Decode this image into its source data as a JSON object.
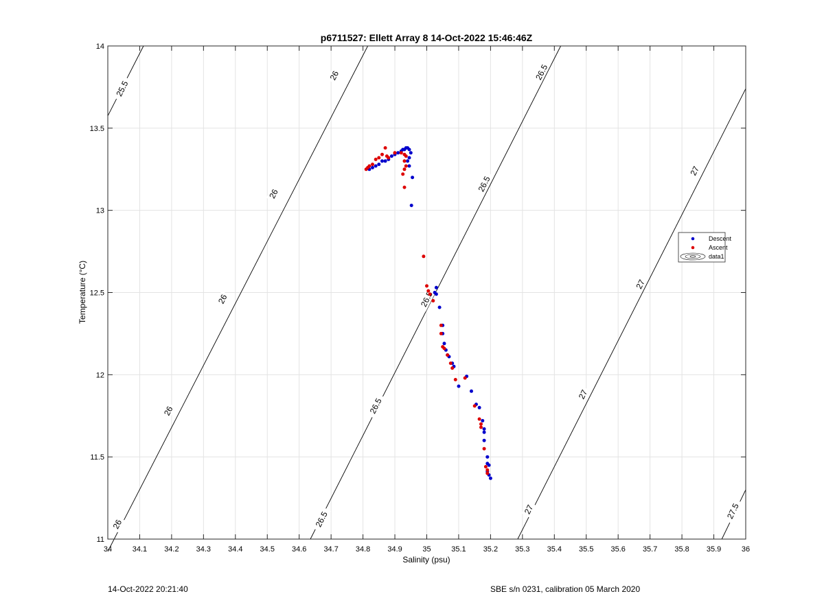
{
  "chart_data": {
    "type": "scatter",
    "title": "p6711527: Ellett Array 8 14-Oct-2022 15:46:46Z",
    "xlabel": "Salinity (psu)",
    "ylabel": "Temperature (°C)",
    "xlim": [
      34,
      36
    ],
    "ylim": [
      11,
      14
    ],
    "grid": true,
    "x_ticks": [
      "34",
      "34.1",
      "34.2",
      "34.3",
      "34.4",
      "34.5",
      "34.6",
      "34.7",
      "34.8",
      "34.9",
      "35",
      "35.1",
      "35.2",
      "35.3",
      "35.4",
      "35.5",
      "35.6",
      "35.7",
      "35.8",
      "35.9",
      "36"
    ],
    "y_ticks": [
      "11",
      "11.5",
      "12",
      "12.5",
      "13",
      "13.5",
      "14"
    ],
    "legend": {
      "placement": "right",
      "entries": [
        "Descent",
        "Ascent",
        "data1"
      ]
    },
    "series": [
      {
        "name": "Descent",
        "color": "#0000cc",
        "points": [
          [
            34.82,
            13.25
          ],
          [
            34.83,
            13.26
          ],
          [
            34.84,
            13.27
          ],
          [
            34.85,
            13.28
          ],
          [
            34.86,
            13.3
          ],
          [
            34.87,
            13.3
          ],
          [
            34.88,
            13.31
          ],
          [
            34.89,
            13.33
          ],
          [
            34.9,
            13.34
          ],
          [
            34.91,
            13.35
          ],
          [
            34.92,
            13.36
          ],
          [
            34.925,
            13.37
          ],
          [
            34.93,
            13.37
          ],
          [
            34.935,
            13.38
          ],
          [
            34.94,
            13.38
          ],
          [
            34.945,
            13.37
          ],
          [
            34.95,
            13.35
          ],
          [
            34.945,
            13.32
          ],
          [
            34.94,
            13.3
          ],
          [
            34.945,
            13.27
          ],
          [
            34.955,
            13.2
          ],
          [
            34.952,
            13.03
          ],
          [
            35.03,
            12.53
          ],
          [
            35.025,
            12.5
          ],
          [
            35.03,
            12.49
          ],
          [
            35.04,
            12.41
          ],
          [
            35.05,
            12.3
          ],
          [
            35.05,
            12.25
          ],
          [
            35.055,
            12.19
          ],
          [
            35.06,
            12.15
          ],
          [
            35.065,
            12.12
          ],
          [
            35.07,
            12.11
          ],
          [
            35.08,
            12.07
          ],
          [
            35.085,
            12.05
          ],
          [
            35.1,
            11.93
          ],
          [
            35.125,
            11.99
          ],
          [
            35.14,
            11.9
          ],
          [
            35.155,
            11.82
          ],
          [
            35.165,
            11.8
          ],
          [
            35.175,
            11.72
          ],
          [
            35.18,
            11.67
          ],
          [
            35.18,
            11.65
          ],
          [
            35.18,
            11.6
          ],
          [
            35.19,
            11.5
          ],
          [
            35.19,
            11.46
          ],
          [
            35.195,
            11.45
          ],
          [
            35.19,
            11.41
          ],
          [
            35.195,
            11.39
          ],
          [
            35.2,
            11.37
          ]
        ]
      },
      {
        "name": "Ascent",
        "color": "#dd0000",
        "points": [
          [
            34.81,
            13.25
          ],
          [
            34.815,
            13.26
          ],
          [
            34.82,
            13.27
          ],
          [
            34.83,
            13.28
          ],
          [
            34.84,
            13.31
          ],
          [
            34.85,
            13.32
          ],
          [
            34.86,
            13.34
          ],
          [
            34.87,
            13.38
          ],
          [
            34.875,
            13.33
          ],
          [
            34.88,
            13.32
          ],
          [
            34.9,
            13.35
          ],
          [
            34.92,
            13.35
          ],
          [
            34.93,
            13.34
          ],
          [
            34.935,
            13.33
          ],
          [
            34.93,
            13.3
          ],
          [
            34.935,
            13.27
          ],
          [
            34.93,
            13.25
          ],
          [
            34.925,
            13.22
          ],
          [
            34.93,
            13.14
          ],
          [
            34.99,
            12.72
          ],
          [
            35.0,
            12.54
          ],
          [
            35.005,
            12.51
          ],
          [
            35.01,
            12.49
          ],
          [
            35.02,
            12.45
          ],
          [
            35.045,
            12.3
          ],
          [
            35.045,
            12.25
          ],
          [
            35.05,
            12.17
          ],
          [
            35.055,
            12.16
          ],
          [
            35.065,
            12.12
          ],
          [
            35.075,
            12.07
          ],
          [
            35.08,
            12.04
          ],
          [
            35.09,
            11.97
          ],
          [
            35.12,
            11.98
          ],
          [
            35.15,
            11.81
          ],
          [
            35.165,
            11.73
          ],
          [
            35.17,
            11.7
          ],
          [
            35.17,
            11.68
          ],
          [
            35.18,
            11.55
          ],
          [
            35.185,
            11.44
          ],
          [
            35.19,
            11.42
          ],
          [
            35.19,
            11.4
          ]
        ]
      }
    ],
    "contours": [
      {
        "value": "25.5",
        "points": [
          [
            34.0,
            13.575
          ],
          [
            34.112,
            14.0
          ]
        ],
        "labels": [
          {
            "text": "25.5",
            "at": [
              34.045,
              13.74
            ]
          }
        ]
      },
      {
        "value": "26",
        "points": [
          [
            34.0,
            10.925
          ],
          [
            34.815,
            14.0
          ]
        ],
        "labels": [
          {
            "text": "26",
            "at": [
              34.03,
              11.09
            ]
          },
          {
            "text": "26",
            "at": [
              34.19,
              11.78
            ]
          },
          {
            "text": "26",
            "at": [
              34.36,
              12.46
            ]
          },
          {
            "text": "26",
            "at": [
              34.52,
              13.1
            ]
          },
          {
            "text": "26",
            "at": [
              34.71,
              13.82
            ]
          }
        ]
      },
      {
        "value": "26.5",
        "points": [
          [
            34.635,
            11.0
          ],
          [
            35.42,
            14.0
          ]
        ],
        "labels": [
          {
            "text": "26.5",
            "at": [
              34.67,
              11.12
            ]
          },
          {
            "text": "26.5",
            "at": [
              34.84,
              11.81
            ]
          },
          {
            "text": "26.5",
            "at": [
              35.0,
              12.46
            ]
          },
          {
            "text": "26.5",
            "at": [
              35.18,
              13.16
            ]
          },
          {
            "text": "26.5",
            "at": [
              35.36,
              13.84
            ]
          }
        ]
      },
      {
        "value": "27",
        "points": [
          [
            35.285,
            11.0
          ],
          [
            36.0,
            13.74
          ]
        ],
        "labels": [
          {
            "text": "27",
            "at": [
              35.32,
              11.18
            ]
          },
          {
            "text": "27",
            "at": [
              35.49,
              11.88
            ]
          },
          {
            "text": "27",
            "at": [
              35.67,
              12.55
            ]
          },
          {
            "text": "27",
            "at": [
              35.84,
              13.24
            ]
          }
        ]
      },
      {
        "value": "27.5",
        "points": [
          [
            35.925,
            11.0
          ],
          [
            36.0,
            11.3
          ]
        ],
        "labels": [
          {
            "text": "27.5",
            "at": [
              35.96,
              11.17
            ]
          }
        ]
      }
    ]
  },
  "footer": {
    "left": "14-Oct-2022 20:21:40",
    "right": "SBE s/n 0231, calibration 05 March 2020"
  }
}
